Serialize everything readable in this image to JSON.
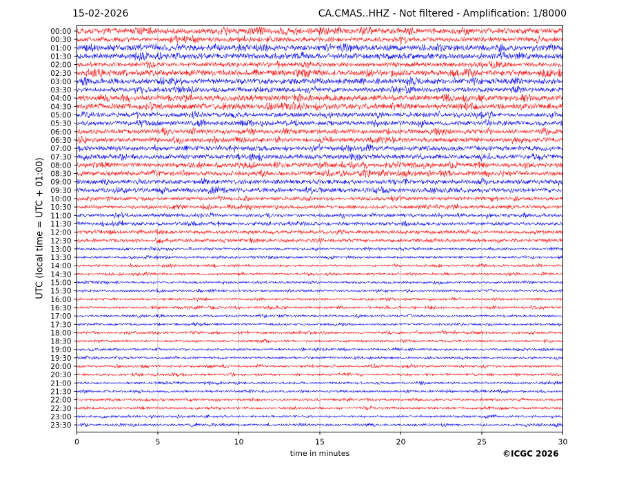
{
  "header": {
    "date": "15-02-2026",
    "title": "CA.CMAS..HHZ - Not filtered - Amplification: 1/8000"
  },
  "footer": {
    "copyright": "©ICGC 2026"
  },
  "chart_data": {
    "type": "line",
    "chart_subtype": "helicorder",
    "xlabel": "time in minutes",
    "ylabel": "UTC (local time = UTC + 01:00)",
    "xlim": [
      0,
      30
    ],
    "xticks": [
      0,
      5,
      10,
      15,
      20,
      25,
      30
    ],
    "row_labels": [
      "00:00",
      "00:30",
      "01:00",
      "01:30",
      "02:00",
      "02:30",
      "03:00",
      "03:30",
      "04:00",
      "04:30",
      "05:00",
      "05:30",
      "06:00",
      "06:30",
      "07:00",
      "07:30",
      "08:00",
      "08:30",
      "09:00",
      "09:30",
      "10:00",
      "10:30",
      "11:00",
      "11:30",
      "12:00",
      "12:30",
      "13:00",
      "13:30",
      "14:00",
      "14:30",
      "15:00",
      "15:30",
      "16:00",
      "16:30",
      "17:00",
      "17:30",
      "18:00",
      "18:30",
      "19:00",
      "19:30",
      "20:00",
      "20:30",
      "21:00",
      "21:30",
      "22:00",
      "22:30",
      "23:00",
      "23:30"
    ],
    "row_amplitude": [
      5,
      4,
      5,
      5,
      4,
      5,
      5,
      4,
      5,
      5,
      4,
      4,
      4,
      4,
      4,
      4,
      4,
      4,
      4,
      4,
      3,
      3,
      3,
      3,
      3,
      3,
      2,
      2,
      2,
      2,
      2,
      2,
      2,
      2,
      2,
      2,
      2,
      2,
      2,
      2,
      2,
      2,
      2,
      2,
      2,
      2,
      2,
      2
    ],
    "trace_colors": [
      "#ff0000",
      "#0000ff"
    ],
    "grid": "vertical dotted at x ticks"
  }
}
